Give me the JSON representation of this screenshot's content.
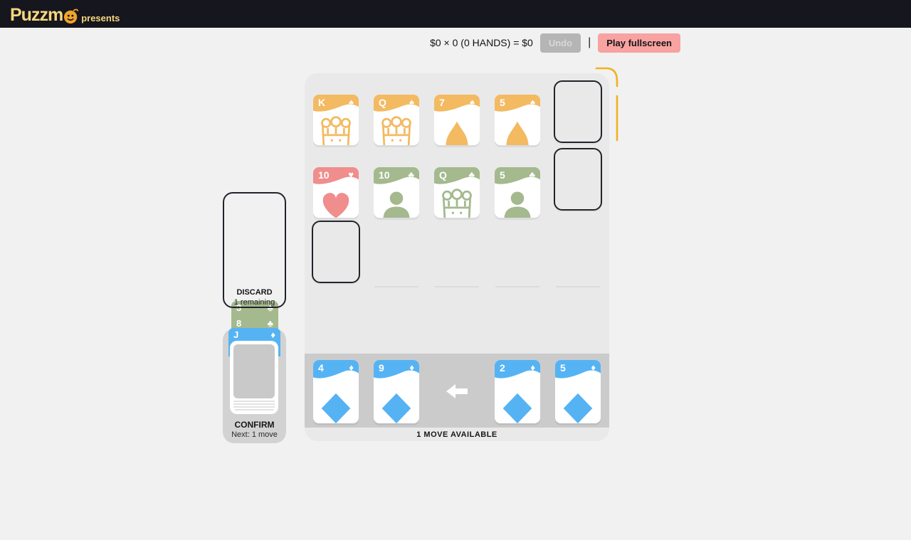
{
  "topbar": {
    "logo_text": "Puzzm",
    "presents": "presents"
  },
  "scorebar": {
    "score": "$0 × 0 (0 HANDS) = $0",
    "undo_label": "Undo",
    "divider": "|",
    "fullscreen_label": "Play fullscreen"
  },
  "colors": {
    "spade": "#f3ba62",
    "heart": "#f08d8d",
    "club": "#a4b98e",
    "diamond": "#55b3f4",
    "highlight": "#f1b11e",
    "pink": "#f8a2a2"
  },
  "suit_glyphs": {
    "spade": "♠",
    "heart": "♥",
    "club": "♣",
    "diamond": "♦"
  },
  "board": {
    "cards": [
      {
        "rank": "K",
        "suit": "spade",
        "art": "royal",
        "row": 0,
        "col": 0
      },
      {
        "rank": "Q",
        "suit": "spade",
        "art": "royal",
        "row": 0,
        "col": 1
      },
      {
        "rank": "7",
        "suit": "spade",
        "art": "pip",
        "row": 0,
        "col": 2
      },
      {
        "rank": "5",
        "suit": "spade",
        "art": "pip",
        "row": 0,
        "col": 3
      },
      {
        "rank": "10",
        "suit": "heart",
        "art": "pip",
        "row": 1,
        "col": 0
      },
      {
        "rank": "10",
        "suit": "club",
        "art": "pip",
        "row": 1,
        "col": 1
      },
      {
        "rank": "Q",
        "suit": "club",
        "art": "royal",
        "row": 1,
        "col": 2
      },
      {
        "rank": "5",
        "suit": "club",
        "art": "pip",
        "row": 1,
        "col": 3
      }
    ],
    "empty_slots": [
      {
        "row": 0,
        "col": 4
      },
      {
        "row": 1,
        "col": 4
      },
      {
        "row": 2,
        "col": 0
      }
    ],
    "placeholders": [
      {
        "row": 2,
        "col": 1
      },
      {
        "row": 2,
        "col": 2
      },
      {
        "row": 2,
        "col": 3
      },
      {
        "row": 2,
        "col": 4
      }
    ],
    "status": "1 MOVE AVAILABLE"
  },
  "hand": {
    "cards": [
      {
        "rank": "4",
        "suit": "diamond",
        "col": 0
      },
      {
        "rank": "9",
        "suit": "diamond",
        "col": 1
      },
      {
        "rank": "2",
        "suit": "diamond",
        "col": 3
      },
      {
        "rank": "5",
        "suit": "diamond",
        "col": 4
      }
    ]
  },
  "sidebar": {
    "discard_label": "DISCARD",
    "discard_remaining": "1 remaining",
    "staged_cards": [
      {
        "rank": "3",
        "suit": "club"
      },
      {
        "rank": "8",
        "suit": "club"
      },
      {
        "rank": "J",
        "suit": "diamond"
      }
    ],
    "confirm_label": "CONFIRM",
    "confirm_next": "Next: 1 move"
  }
}
